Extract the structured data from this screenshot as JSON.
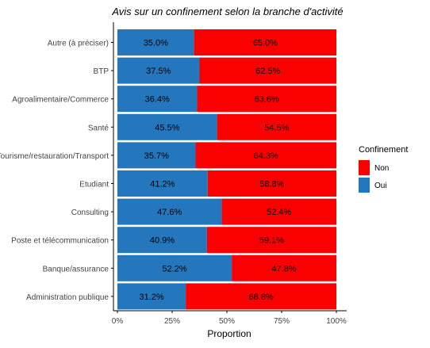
{
  "chart_data": {
    "type": "bar",
    "orientation": "horizontal",
    "stacked": true,
    "title": "Avis sur un confinement selon la branche d'activité",
    "xlabel": "Proportion",
    "ylabel": "",
    "xlim": [
      0,
      1
    ],
    "x_ticks": [
      "0%",
      "25%",
      "50%",
      "75%",
      "100%"
    ],
    "grid": false,
    "categories": [
      "Autre (à préciser)",
      "BTP",
      "Agroalimentaire/Commerce",
      "Santé",
      "Tourisme/restauration/Transport",
      "Etudiant",
      "Consulting",
      "Poste et télécommunication",
      "Banque/assurance",
      "Administration publique"
    ],
    "series": [
      {
        "name": "Oui",
        "color": "#2477bd",
        "values": [
          0.35,
          0.375,
          0.364,
          0.455,
          0.357,
          0.412,
          0.476,
          0.409,
          0.522,
          0.312
        ],
        "labels": [
          "35.0%",
          "37.5%",
          "36.4%",
          "45.5%",
          "35.7%",
          "41.2%",
          "47.6%",
          "40.9%",
          "52.2%",
          "31.2%"
        ]
      },
      {
        "name": "Non",
        "color": "#fa0000",
        "values": [
          0.65,
          0.625,
          0.636,
          0.545,
          0.643,
          0.588,
          0.524,
          0.591,
          0.478,
          0.688
        ],
        "labels": [
          "65.0%",
          "62.5%",
          "63.6%",
          "54.5%",
          "64.3%",
          "58.8%",
          "52.4%",
          "59.1%",
          "47.8%",
          "68.8%"
        ]
      }
    ],
    "legend": {
      "title": "Confinement",
      "placement": "right",
      "items": [
        {
          "label": "Non",
          "color": "#fa0000"
        },
        {
          "label": "Oui",
          "color": "#2477bd"
        }
      ]
    }
  }
}
